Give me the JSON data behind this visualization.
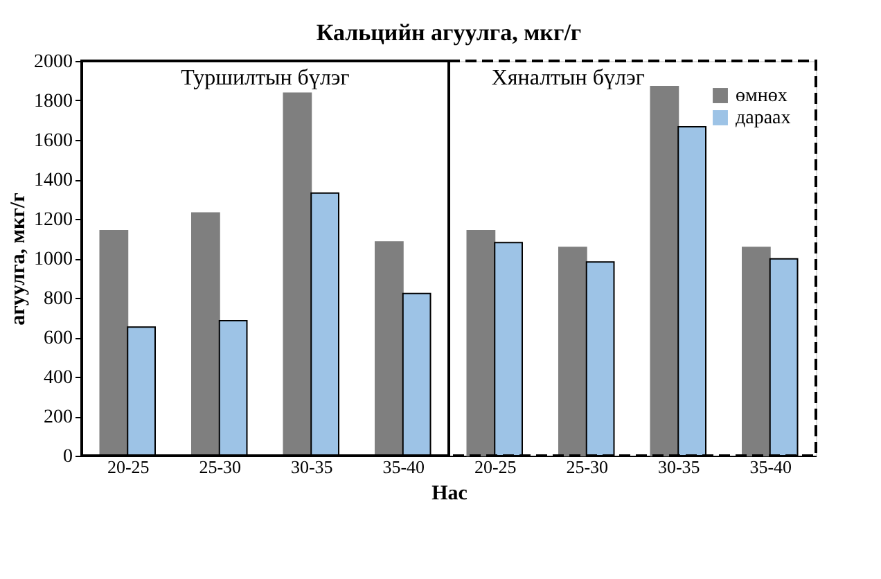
{
  "chart_data": {
    "type": "bar",
    "title": "Кальцийн агуулга, мкг/г",
    "xlabel": "Нас",
    "ylabel": "агуулга, мкг/г",
    "categories": [
      "20-25",
      "25-30",
      "30-35",
      "35-40",
      "20-25",
      "25-30",
      "30-35",
      "35-40"
    ],
    "series": [
      {
        "name": "өмнөх",
        "color": "#7f7f7f",
        "values": [
          1140,
          1230,
          1837,
          1083,
          1140,
          1055,
          1870,
          1055
        ]
      },
      {
        "name": "дараах",
        "color": "#9dc3e6",
        "values": [
          652,
          684,
          1331,
          822,
          1080,
          982,
          1667,
          997
        ]
      }
    ],
    "annotations": [
      "Туршилтын бүлэг",
      "Хяналтын бүлэг"
    ],
    "ylim": [
      0,
      2000
    ],
    "yticks": [
      0,
      200,
      400,
      600,
      800,
      1000,
      1200,
      1400,
      1600,
      1800,
      2000
    ],
    "grid": false,
    "legend": "top right"
  }
}
